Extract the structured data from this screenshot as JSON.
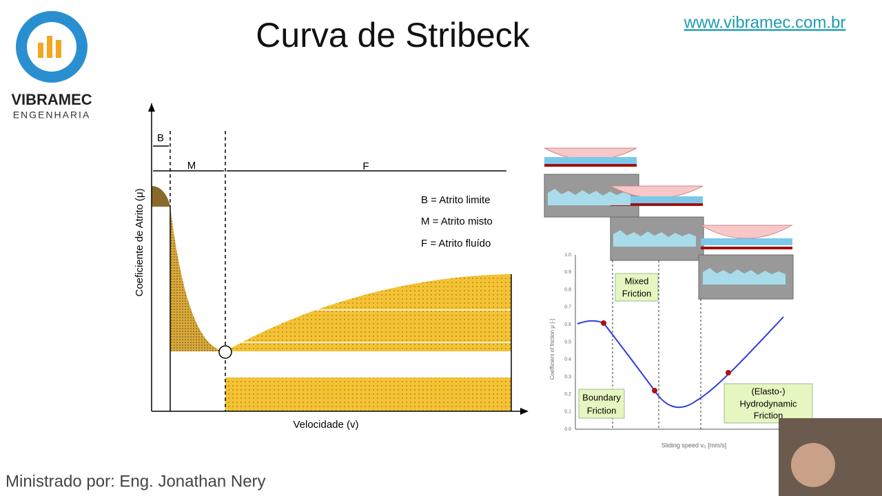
{
  "logo": {
    "name": "VIBRAMEC",
    "subtitle": "ENGENHARIA"
  },
  "header": {
    "title": "Curva de Stribeck",
    "url": "www.vibramec.com.br"
  },
  "left_diagram": {
    "regions": [
      "B",
      "M",
      "F"
    ],
    "legend": [
      "B  =  Atrito limite",
      "M  =  Atrito misto",
      "F  =  Atrito fluído"
    ],
    "y_label": "Coeficiente de Atrito (μ)",
    "x_label": "Velocidade (v)"
  },
  "right_diagram": {
    "mixed": [
      "Mixed",
      "Friction"
    ],
    "boundary": [
      "Boundary",
      "Friction"
    ],
    "hydro": [
      "(Elasto-)",
      "Hydrodynamic",
      "Friction"
    ],
    "y_label": "Coefficient of friction μ [-]",
    "x_label": "Sliding speed v₀ [mm/s]",
    "yticks": [
      "1.0",
      "0.9",
      "0.8",
      "0.7",
      "0.6",
      "0.5",
      "0.4",
      "0.3",
      "0.2",
      "0.1",
      "0.0"
    ]
  },
  "footer": {
    "presenter": "Ministrado por:  Eng. Jonathan Nery"
  }
}
